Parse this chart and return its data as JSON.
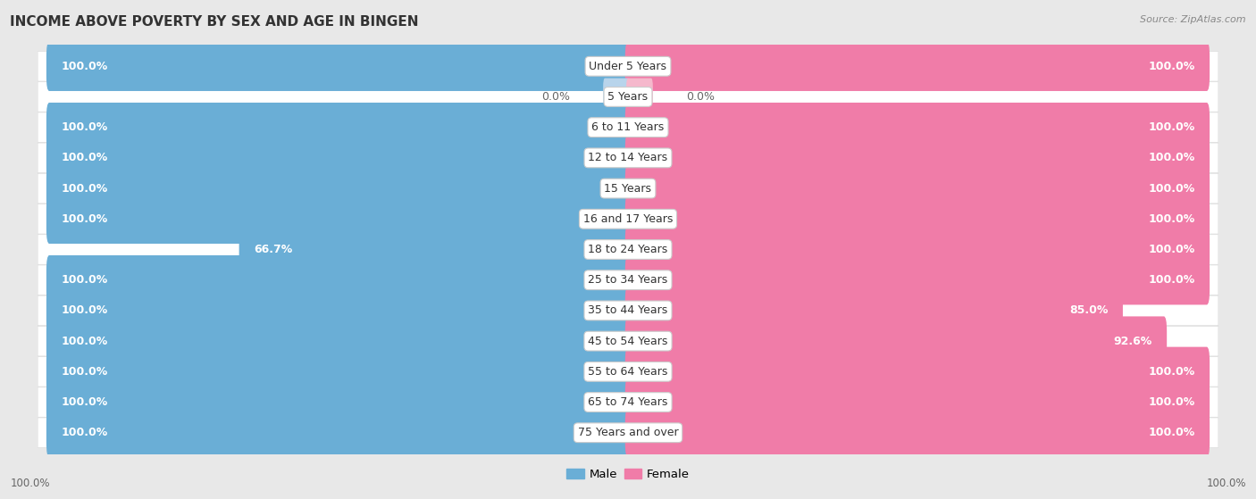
{
  "title": "INCOME ABOVE POVERTY BY SEX AND AGE IN BINGEN",
  "source": "Source: ZipAtlas.com",
  "categories": [
    "Under 5 Years",
    "5 Years",
    "6 to 11 Years",
    "12 to 14 Years",
    "15 Years",
    "16 and 17 Years",
    "18 to 24 Years",
    "25 to 34 Years",
    "35 to 44 Years",
    "45 to 54 Years",
    "55 to 64 Years",
    "65 to 74 Years",
    "75 Years and over"
  ],
  "male_values": [
    100.0,
    0.0,
    100.0,
    100.0,
    100.0,
    100.0,
    66.7,
    100.0,
    100.0,
    100.0,
    100.0,
    100.0,
    100.0
  ],
  "female_values": [
    100.0,
    0.0,
    100.0,
    100.0,
    100.0,
    100.0,
    100.0,
    100.0,
    85.0,
    92.6,
    100.0,
    100.0,
    100.0
  ],
  "male_color": "#6aaed6",
  "female_color": "#f07ca8",
  "male_color_light": "#b8d4eb",
  "female_color_light": "#f5b8cc",
  "male_label": "Male",
  "female_label": "Female",
  "bar_height": 0.62,
  "bg_color": "#e8e8e8",
  "row_bg_color": "#f5f5f5",
  "max_value": 100.0,
  "title_fontsize": 11,
  "label_fontsize": 9,
  "category_fontsize": 9
}
